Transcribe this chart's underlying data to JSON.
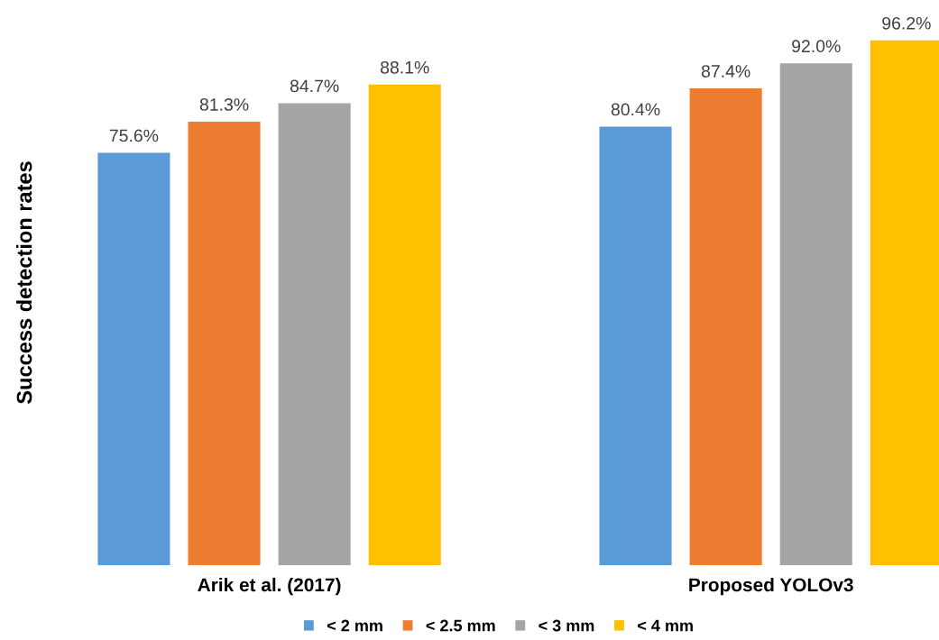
{
  "chart_data": {
    "type": "bar",
    "ylabel": "Success detection rates",
    "categories": [
      "Arik et al. (2017)",
      "Proposed YOLOv3"
    ],
    "series": [
      {
        "name": "< 2 mm",
        "color": "#5b9bd5",
        "values": [
          75.6,
          80.4
        ],
        "value_labels": [
          "75.6%",
          "80.4%"
        ]
      },
      {
        "name": "< 2.5 mm",
        "color": "#ed7d31",
        "values": [
          81.3,
          87.4
        ],
        "value_labels": [
          "81.3%",
          "87.4%"
        ]
      },
      {
        "name": "< 3 mm",
        "color": "#a5a5a5",
        "values": [
          84.7,
          92.0
        ],
        "value_labels": [
          "84.7%",
          "92.0%"
        ]
      },
      {
        "name": "< 4 mm",
        "color": "#ffc000",
        "values": [
          88.1,
          96.2
        ],
        "value_labels": [
          "88.1%",
          "96.2%"
        ]
      }
    ],
    "legend": "bottom",
    "grid": false,
    "tick_labels": "x"
  }
}
